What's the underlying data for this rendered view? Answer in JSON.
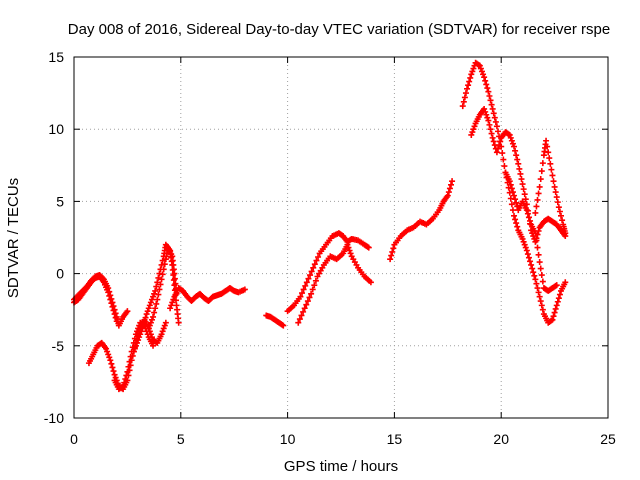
{
  "chart_data": {
    "type": "scatter",
    "title": "Day 008 of 2016, Sidereal Day-to-day VTEC variation (SDTVAR) for receiver rspe",
    "xlabel": "GPS time / hours",
    "ylabel": "SDTVAR / TECUs",
    "xlim": [
      0,
      25
    ],
    "ylim": [
      -10,
      15
    ],
    "xticks": [
      "0",
      "5",
      "10",
      "15",
      "20",
      "25"
    ],
    "yticks": [
      "-10",
      "-5",
      "0",
      "5",
      "10",
      "15"
    ],
    "grid": true,
    "marker": "plus",
    "color": "#ff0000",
    "series": [
      {
        "points": [
          [
            0.0,
            -1.8
          ],
          [
            0.2,
            -1.5
          ],
          [
            0.4,
            -1.2
          ],
          [
            0.6,
            -0.9
          ],
          [
            0.8,
            -0.5
          ],
          [
            1.0,
            -0.2
          ],
          [
            1.2,
            -0.1
          ],
          [
            1.4,
            -0.4
          ],
          [
            1.6,
            -1.0
          ],
          [
            1.8,
            -2.0
          ],
          [
            2.0,
            -3.0
          ],
          [
            2.1,
            -3.6
          ],
          [
            2.3,
            -3.0
          ],
          [
            2.5,
            -2.6
          ]
        ]
      },
      {
        "points": [
          [
            0.0,
            -2.0
          ],
          [
            0.2,
            -1.8
          ],
          [
            0.4,
            -1.4
          ],
          [
            0.6,
            -1.0
          ],
          [
            0.8,
            -0.6
          ],
          [
            1.0,
            -0.3
          ],
          [
            1.2,
            -0.2
          ],
          [
            1.4,
            -0.6
          ],
          [
            1.6,
            -1.3
          ],
          [
            1.8,
            -2.3
          ],
          [
            2.0,
            -3.3
          ]
        ]
      },
      {
        "points": [
          [
            0.7,
            -6.2
          ],
          [
            0.9,
            -5.6
          ],
          [
            1.1,
            -5.0
          ],
          [
            1.3,
            -4.8
          ],
          [
            1.5,
            -5.2
          ],
          [
            1.7,
            -6.0
          ],
          [
            1.9,
            -7.0
          ],
          [
            2.1,
            -7.8
          ],
          [
            2.3,
            -8.0
          ],
          [
            2.5,
            -7.4
          ],
          [
            2.7,
            -6.0
          ],
          [
            2.9,
            -4.8
          ],
          [
            3.1,
            -3.8
          ],
          [
            3.3,
            -3.2
          ],
          [
            3.5,
            -3.8
          ],
          [
            3.7,
            -4.6
          ],
          [
            3.9,
            -4.8
          ],
          [
            4.1,
            -4.2
          ],
          [
            4.3,
            -3.4
          ]
        ]
      },
      {
        "points": [
          [
            1.9,
            -7.4
          ],
          [
            2.1,
            -8.0
          ],
          [
            2.3,
            -7.8
          ],
          [
            2.5,
            -6.8
          ],
          [
            2.7,
            -5.4
          ],
          [
            2.9,
            -4.2
          ],
          [
            3.1,
            -3.4
          ],
          [
            3.3,
            -3.6
          ],
          [
            3.5,
            -4.4
          ],
          [
            3.7,
            -5.0
          ]
        ]
      },
      {
        "points": [
          [
            2.8,
            -5.4
          ],
          [
            3.0,
            -4.6
          ],
          [
            3.2,
            -3.8
          ],
          [
            3.4,
            -2.8
          ],
          [
            3.6,
            -2.0
          ],
          [
            3.8,
            -1.2
          ],
          [
            4.0,
            0.0
          ],
          [
            4.2,
            1.2
          ],
          [
            4.3,
            2.0
          ],
          [
            4.5,
            1.6
          ],
          [
            4.6,
            0.6
          ],
          [
            4.7,
            -0.8
          ],
          [
            4.8,
            -2.2
          ],
          [
            4.9,
            -3.4
          ]
        ]
      },
      {
        "points": [
          [
            3.5,
            -3.8
          ],
          [
            3.7,
            -3.0
          ],
          [
            3.9,
            -1.8
          ],
          [
            4.1,
            -0.4
          ],
          [
            4.3,
            1.0
          ],
          [
            4.4,
            1.8
          ],
          [
            4.6,
            1.2
          ],
          [
            4.7,
            0.0
          ],
          [
            4.8,
            -1.4
          ]
        ]
      },
      {
        "points": [
          [
            4.5,
            -2.4
          ],
          [
            4.7,
            -1.6
          ],
          [
            4.9,
            -1.0
          ],
          [
            5.1,
            -1.2
          ],
          [
            5.3,
            -1.6
          ],
          [
            5.5,
            -1.9
          ],
          [
            5.7,
            -1.6
          ],
          [
            5.9,
            -1.4
          ],
          [
            6.1,
            -1.7
          ],
          [
            6.3,
            -1.9
          ],
          [
            6.5,
            -1.6
          ],
          [
            6.7,
            -1.5
          ],
          [
            6.9,
            -1.4
          ],
          [
            7.1,
            -1.2
          ],
          [
            7.3,
            -1.0
          ],
          [
            7.5,
            -1.2
          ],
          [
            7.7,
            -1.3
          ],
          [
            8.0,
            -1.1
          ]
        ]
      },
      {
        "points": [
          [
            9.0,
            -2.9
          ],
          [
            9.2,
            -3.0
          ],
          [
            9.4,
            -3.2
          ],
          [
            9.6,
            -3.4
          ],
          [
            9.8,
            -3.6
          ]
        ]
      },
      {
        "points": [
          [
            10.0,
            -2.6
          ],
          [
            10.3,
            -2.2
          ],
          [
            10.6,
            -1.6
          ],
          [
            10.9,
            -0.6
          ],
          [
            11.2,
            0.4
          ],
          [
            11.5,
            1.4
          ],
          [
            11.8,
            2.0
          ],
          [
            12.1,
            2.6
          ],
          [
            12.4,
            2.8
          ],
          [
            12.6,
            2.6
          ],
          [
            12.8,
            2.2
          ],
          [
            13.0,
            2.4
          ],
          [
            13.3,
            2.3
          ],
          [
            13.6,
            2.0
          ],
          [
            13.8,
            1.8
          ]
        ]
      },
      {
        "points": [
          [
            10.5,
            -3.4
          ],
          [
            10.8,
            -2.4
          ],
          [
            11.1,
            -1.4
          ],
          [
            11.4,
            -0.2
          ],
          [
            11.7,
            0.6
          ],
          [
            12.0,
            1.2
          ],
          [
            12.3,
            1.0
          ],
          [
            12.6,
            1.4
          ],
          [
            12.8,
            2.0
          ],
          [
            13.0,
            1.2
          ],
          [
            13.3,
            0.4
          ],
          [
            13.6,
            -0.2
          ],
          [
            13.9,
            -0.6
          ]
        ]
      },
      {
        "points": [
          [
            14.8,
            1.0
          ],
          [
            15.0,
            2.0
          ],
          [
            15.3,
            2.6
          ],
          [
            15.6,
            3.0
          ],
          [
            15.9,
            3.2
          ],
          [
            16.2,
            3.6
          ],
          [
            16.5,
            3.4
          ],
          [
            16.8,
            3.8
          ],
          [
            17.1,
            4.4
          ],
          [
            17.3,
            5.0
          ],
          [
            17.5,
            5.4
          ],
          [
            17.7,
            6.4
          ]
        ]
      },
      {
        "points": [
          [
            18.2,
            11.6
          ],
          [
            18.4,
            12.8
          ],
          [
            18.6,
            13.8
          ],
          [
            18.8,
            14.6
          ],
          [
            19.0,
            14.4
          ],
          [
            19.2,
            13.6
          ],
          [
            19.4,
            12.6
          ],
          [
            19.6,
            11.4
          ],
          [
            19.8,
            10.2
          ],
          [
            20.0,
            8.8
          ],
          [
            20.2,
            7.0
          ],
          [
            20.4,
            5.6
          ],
          [
            20.6,
            4.0
          ],
          [
            20.8,
            3.0
          ],
          [
            21.0,
            2.4
          ],
          [
            21.2,
            1.6
          ],
          [
            21.4,
            0.6
          ],
          [
            21.6,
            -0.4
          ],
          [
            21.8,
            -1.6
          ],
          [
            22.0,
            -2.8
          ],
          [
            22.2,
            -3.4
          ],
          [
            22.4,
            -3.2
          ],
          [
            22.6,
            -2.2
          ],
          [
            22.8,
            -1.2
          ],
          [
            23.0,
            -0.6
          ]
        ]
      },
      {
        "points": [
          [
            18.6,
            9.6
          ],
          [
            18.8,
            10.4
          ],
          [
            19.0,
            11.0
          ],
          [
            19.2,
            11.4
          ],
          [
            19.4,
            10.6
          ],
          [
            19.6,
            9.4
          ],
          [
            19.8,
            8.4
          ],
          [
            20.0,
            9.4
          ],
          [
            20.2,
            9.8
          ],
          [
            20.4,
            9.6
          ],
          [
            20.6,
            8.8
          ],
          [
            20.8,
            7.6
          ],
          [
            21.0,
            6.2
          ],
          [
            21.2,
            4.8
          ],
          [
            21.4,
            3.0
          ],
          [
            21.6,
            2.2
          ],
          [
            21.8,
            3.2
          ],
          [
            22.0,
            3.6
          ],
          [
            22.2,
            3.8
          ],
          [
            22.4,
            3.6
          ],
          [
            22.6,
            3.4
          ],
          [
            22.8,
            3.0
          ],
          [
            23.0,
            2.6
          ]
        ]
      },
      {
        "points": [
          [
            20.2,
            7.0
          ],
          [
            20.4,
            6.4
          ],
          [
            20.6,
            5.4
          ],
          [
            20.8,
            4.4
          ],
          [
            21.0,
            5.0
          ],
          [
            21.2,
            4.4
          ],
          [
            21.4,
            3.4
          ],
          [
            21.6,
            2.8
          ],
          [
            21.8,
            0.8
          ],
          [
            22.0,
            -1.0
          ],
          [
            22.2,
            -1.2
          ],
          [
            22.4,
            -1.0
          ],
          [
            22.6,
            -0.8
          ]
        ]
      },
      {
        "points": [
          [
            21.6,
            4.2
          ],
          [
            21.8,
            6.0
          ],
          [
            22.0,
            8.2
          ],
          [
            22.1,
            9.2
          ],
          [
            22.3,
            7.6
          ],
          [
            22.5,
            6.0
          ],
          [
            22.7,
            4.6
          ],
          [
            22.9,
            3.4
          ],
          [
            23.0,
            2.8
          ]
        ]
      }
    ]
  }
}
